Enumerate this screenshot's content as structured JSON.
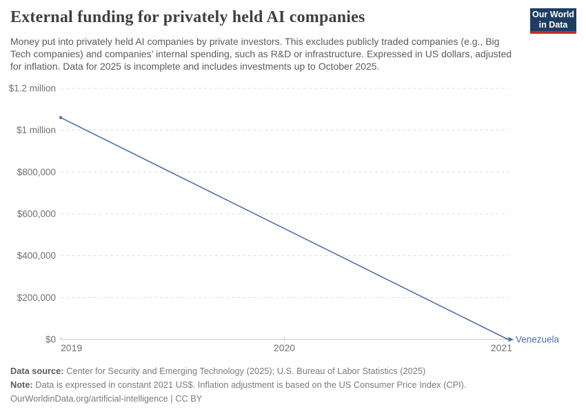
{
  "header": {
    "title": "External funding for privately held AI companies",
    "subtitle": "Money put into privately held AI companies by private investors. This excludes publicly traded companies (e.g., Big Tech companies) and companies’ internal spending, such as R&D or infrastructure. Expressed in US dollars, adjusted for inflation. Data for 2025 is incomplete and includes investments up to October 2025.",
    "logo": {
      "line1": "Our World",
      "line2": "in Data",
      "bg_color": "#1d3d63",
      "accent_color": "#cc2a28"
    }
  },
  "chart_data": {
    "type": "line",
    "title": "External funding for privately held AI companies",
    "xlabel": "",
    "ylabel": "",
    "x_range": [
      2019,
      2021
    ],
    "y_range": [
      0,
      1200000
    ],
    "grid": "horizontal-dashed",
    "legend_position": "end-of-line-label",
    "x_ticks": [
      {
        "value": 2019,
        "label": "2019"
      },
      {
        "value": 2020,
        "label": "2020"
      },
      {
        "value": 2021,
        "label": "2021"
      }
    ],
    "y_ticks": [
      {
        "value": 0,
        "label": "$0"
      },
      {
        "value": 200000,
        "label": "$200,000"
      },
      {
        "value": 400000,
        "label": "$400,000"
      },
      {
        "value": 600000,
        "label": "$600,000"
      },
      {
        "value": 800000,
        "label": "$800,000"
      },
      {
        "value": 1000000,
        "label": "$1 million"
      },
      {
        "value": 1200000,
        "label": "$1.2 million"
      }
    ],
    "series": [
      {
        "name": "Venezuela",
        "color": "#4c6fb1",
        "points": [
          {
            "x": 2019,
            "y": 1060000
          },
          {
            "x": 2021,
            "y": 0
          }
        ]
      }
    ],
    "style": {
      "gridline_color": "#dcdcdc",
      "axis_color": "#c2c2c2",
      "tick_label_color": "#6e7073"
    }
  },
  "footer": {
    "source_label": "Data source:",
    "source_text": " Center for Security and Emerging Technology (2025); U.S. Bureau of Labor Statistics (2025)",
    "note_label": "Note:",
    "note_text": " Data is expressed in constant 2021 US$. Inflation adjustment is based on the US Consumer Price Index (CPI).",
    "link_text": "OurWorldinData.org/artificial-intelligence | CC BY"
  }
}
